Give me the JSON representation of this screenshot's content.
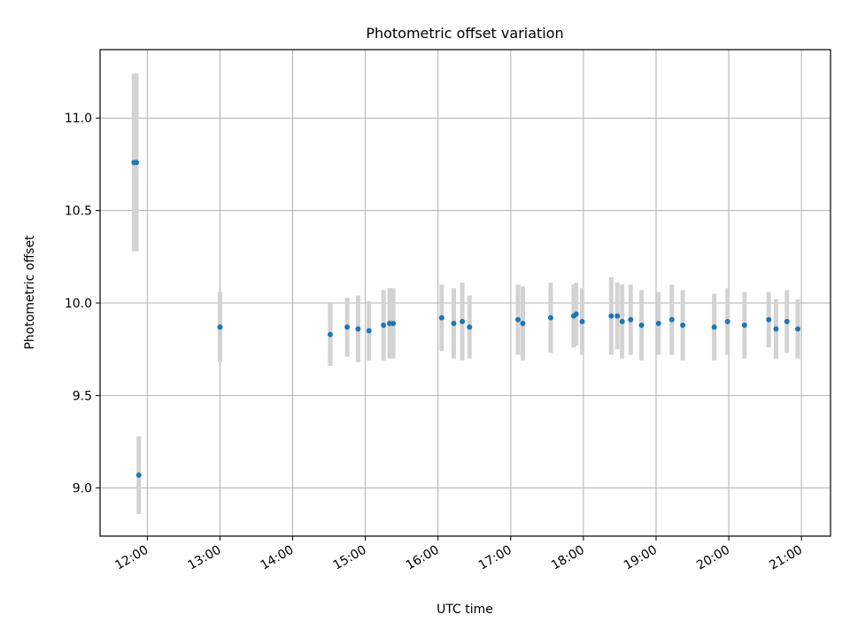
{
  "chart_data": {
    "type": "scatter",
    "title": "Photometric offset variation",
    "xlabel": "UTC time",
    "ylabel": "Photometric offset",
    "x_ticks": [
      "12:00",
      "13:00",
      "14:00",
      "15:00",
      "16:00",
      "17:00",
      "18:00",
      "19:00",
      "20:00",
      "21:00"
    ],
    "y_ticks": [
      "9.0",
      "9.5",
      "10.0",
      "10.5",
      "11.0"
    ],
    "xlim": [
      "11:21",
      "21:24"
    ],
    "ylim": [
      8.74,
      11.37
    ],
    "grid": true,
    "point_color": "#1f77b4",
    "errorbar_color": "#d3d3d3",
    "points": [
      {
        "x": "11:49",
        "y": 10.76,
        "err": 0.48
      },
      {
        "x": "11:51",
        "y": 10.76,
        "err": 0.48
      },
      {
        "x": "11:53",
        "y": 9.07,
        "err": 0.21
      },
      {
        "x": "13:00",
        "y": 9.87,
        "err": 0.19
      },
      {
        "x": "14:31",
        "y": 9.83,
        "err": 0.17
      },
      {
        "x": "14:45",
        "y": 9.87,
        "err": 0.16
      },
      {
        "x": "14:54",
        "y": 9.86,
        "err": 0.18
      },
      {
        "x": "15:03",
        "y": 9.85,
        "err": 0.16
      },
      {
        "x": "15:15",
        "y": 9.88,
        "err": 0.19
      },
      {
        "x": "15:20",
        "y": 9.89,
        "err": 0.19
      },
      {
        "x": "15:23",
        "y": 9.89,
        "err": 0.19
      },
      {
        "x": "16:03",
        "y": 9.92,
        "err": 0.18
      },
      {
        "x": "16:13",
        "y": 9.89,
        "err": 0.19
      },
      {
        "x": "16:20",
        "y": 9.9,
        "err": 0.21
      },
      {
        "x": "16:26",
        "y": 9.87,
        "err": 0.17
      },
      {
        "x": "17:06",
        "y": 9.91,
        "err": 0.19
      },
      {
        "x": "17:10",
        "y": 9.89,
        "err": 0.2
      },
      {
        "x": "17:33",
        "y": 9.92,
        "err": 0.19
      },
      {
        "x": "17:52",
        "y": 9.93,
        "err": 0.17
      },
      {
        "x": "17:54",
        "y": 9.94,
        "err": 0.17
      },
      {
        "x": "17:59",
        "y": 9.9,
        "err": 0.18
      },
      {
        "x": "18:23",
        "y": 9.93,
        "err": 0.21
      },
      {
        "x": "18:28",
        "y": 9.93,
        "err": 0.18
      },
      {
        "x": "18:32",
        "y": 9.9,
        "err": 0.2
      },
      {
        "x": "18:39",
        "y": 9.91,
        "err": 0.19
      },
      {
        "x": "18:48",
        "y": 9.88,
        "err": 0.19
      },
      {
        "x": "19:02",
        "y": 9.89,
        "err": 0.17
      },
      {
        "x": "19:13",
        "y": 9.91,
        "err": 0.19
      },
      {
        "x": "19:22",
        "y": 9.88,
        "err": 0.19
      },
      {
        "x": "19:48",
        "y": 9.87,
        "err": 0.18
      },
      {
        "x": "19:59",
        "y": 9.9,
        "err": 0.18
      },
      {
        "x": "20:13",
        "y": 9.88,
        "err": 0.18
      },
      {
        "x": "20:33",
        "y": 9.91,
        "err": 0.15
      },
      {
        "x": "20:39",
        "y": 9.86,
        "err": 0.16
      },
      {
        "x": "20:48",
        "y": 9.9,
        "err": 0.17
      },
      {
        "x": "20:57",
        "y": 9.86,
        "err": 0.16
      }
    ]
  }
}
